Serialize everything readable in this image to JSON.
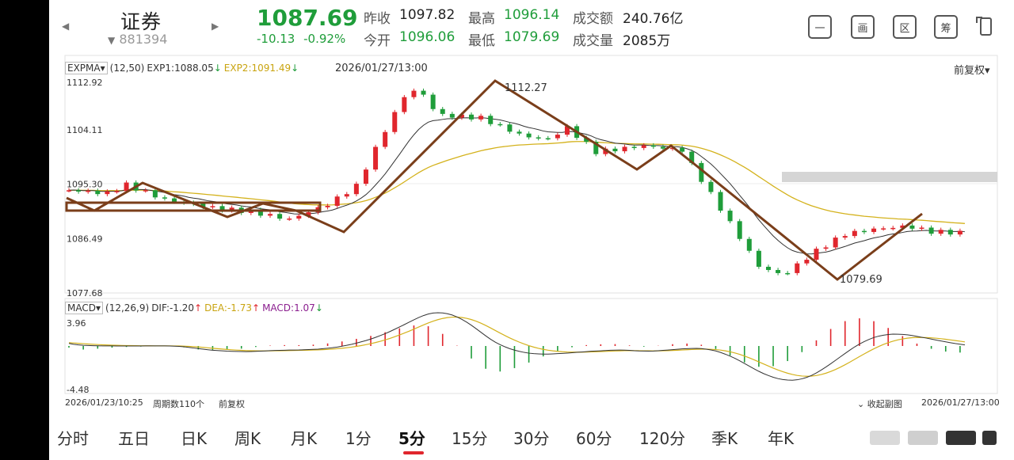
{
  "header": {
    "name": "证券",
    "code": "881394",
    "price": "1087.69",
    "change": "-10.13",
    "change_pct": "-0.92%",
    "stats": [
      {
        "label": "昨收",
        "value": "1097.82",
        "color": "#222222"
      },
      {
        "label": "最高",
        "value": "1096.14",
        "color": "#1f9d3a"
      },
      {
        "label": "成交额",
        "value": "240.76亿",
        "color": "#222222"
      },
      {
        "label": "今开",
        "value": "1096.06",
        "color": "#1f9d3a"
      },
      {
        "label": "最低",
        "value": "1079.69",
        "color": "#1f9d3a"
      },
      {
        "label": "成交量",
        "value": "2085万",
        "color": "#222222"
      }
    ],
    "tools": [
      "一",
      "画",
      "区",
      "筹",
      "landscape-icon"
    ]
  },
  "kline": {
    "indicator": "EXPMA",
    "params": "(12,50)",
    "exp1": "EXP1:1088.05",
    "exp2": "EXP2:1091.49",
    "datetime": "2026/01/27/13:00",
    "adjust": "前复权",
    "y_ticks": [
      "1112.92",
      "1104.11",
      "1095.30",
      "1086.49",
      "1077.68"
    ],
    "high_mark": "1112.27",
    "low_mark": "1079.69"
  },
  "macd": {
    "indicator": "MACD",
    "params": "(12,26,9)",
    "dif": "DIF:-1.20",
    "dea": "DEA:-1.73",
    "macd": "MACD:1.07",
    "y_top": "3.96",
    "y_bottom": "-4.48"
  },
  "footer": {
    "start": "2026/01/23/10:25",
    "period_count": "周期数110个",
    "adjust": "前复权",
    "collapse": "收起副图",
    "end": "2026/01/27/13:00"
  },
  "tabs": [
    "分时",
    "五日",
    "日K",
    "周K",
    "月K",
    "1分",
    "5分",
    "15分",
    "30分",
    "60分",
    "120分",
    "季K",
    "年K"
  ],
  "active_tab": "5分",
  "colors": {
    "up": "#e0262d",
    "down": "#1f9d3a",
    "exp1": "#333333",
    "exp2": "#d4b21c",
    "annotation": "#7a3e1a",
    "accent": "#e0262d"
  },
  "chart_data": {
    "type": "candlestick",
    "title": "",
    "y_range": [
      1077.68,
      1112.92
    ],
    "bars": 110,
    "marked_high": 1112.27,
    "marked_low": 1079.69,
    "exp1_last": 1088.05,
    "exp2_last": 1091.49,
    "macd_range": [
      -4.48,
      3.96
    ],
    "dif_last": -1.2,
    "dea_last": -1.73,
    "macd_last": 1.07
  }
}
